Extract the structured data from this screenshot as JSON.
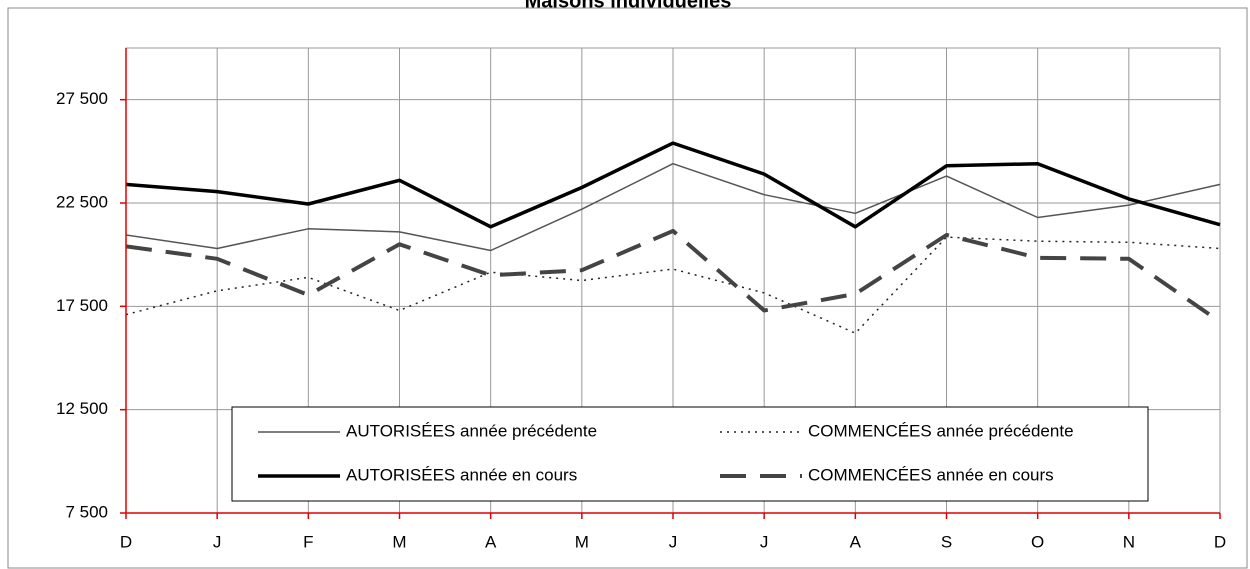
{
  "chart_data": {
    "type": "line",
    "title": "Maisons individuelles",
    "categories": [
      "D",
      "J",
      "F",
      "M",
      "A",
      "M",
      "J",
      "J",
      "A",
      "S",
      "O",
      "N",
      "D"
    ],
    "series": [
      {
        "name": "AUTORISÉES année précédente",
        "color": "#555555",
        "style": "solid",
        "linewidth": 1.5,
        "values": [
          20950,
          20300,
          21250,
          21100,
          20200,
          22200,
          24400,
          22900,
          22000,
          23800,
          21800,
          22400,
          23400
        ]
      },
      {
        "name": "COMMENCÉES année précédente",
        "color": "#222222",
        "style": "dotted",
        "linewidth": 1.5,
        "values": [
          17100,
          18250,
          18900,
          17300,
          19150,
          18750,
          19300,
          18150,
          16200,
          20850,
          20650,
          20600,
          20300
        ]
      },
      {
        "name": "AUTORISÉES année en cours",
        "color": "#000000",
        "style": "solid",
        "linewidth": 3.5,
        "values": [
          23400,
          23050,
          22450,
          23600,
          21350,
          23250,
          25400,
          23900,
          21350,
          24300,
          24400,
          22700,
          21450
        ]
      },
      {
        "name": "COMMENCÉES année en cours",
        "color": "#444444",
        "style": "dashed",
        "linewidth": 4,
        "values": [
          20400,
          19800,
          18050,
          20500,
          19000,
          19250,
          21150,
          17300,
          18100,
          20950,
          19850,
          19800,
          16750
        ]
      }
    ],
    "ylim": [
      7500,
      30000
    ],
    "yticks": [
      {
        "value": 7500,
        "label": "7 500"
      },
      {
        "value": 12500,
        "label": "12 500"
      },
      {
        "value": 17500,
        "label": "17 500"
      },
      {
        "value": 22500,
        "label": "22 500"
      },
      {
        "value": 27500,
        "label": "27 500"
      }
    ],
    "grid": true,
    "axis_color": "#e00000"
  }
}
